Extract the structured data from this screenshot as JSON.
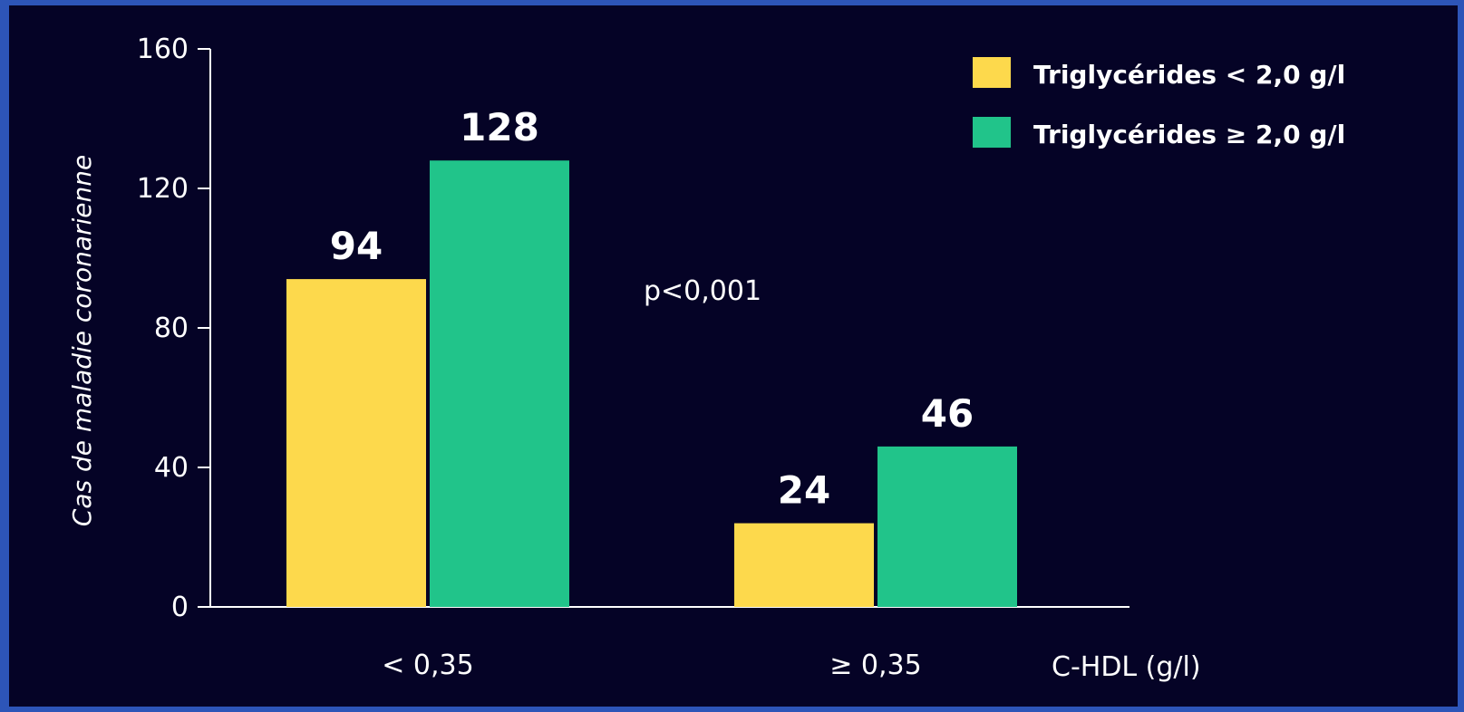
{
  "chart_data": {
    "type": "bar",
    "categories": [
      "< 0,35",
      "≥ 0,35"
    ],
    "series": [
      {
        "name": "Triglycérides < 2,0 g/l",
        "values": [
          94,
          24
        ],
        "color": "#fdd94c"
      },
      {
        "name": "Triglycérides ≥ 2,0 g/l",
        "values": [
          128,
          46
        ],
        "color": "#21c48a"
      }
    ],
    "data_labels": [
      [
        "94",
        "24"
      ],
      [
        "128",
        "46"
      ]
    ],
    "yticks": [
      0,
      40,
      80,
      120,
      160
    ],
    "ylim": [
      0,
      160
    ],
    "ylabel": "Cas de maladie coronarienne",
    "xlabel": "C-HDL (g/l)",
    "annotation": "p<0,001",
    "legend_position": "top-right",
    "grid": false
  },
  "colors": {
    "background": "#050326",
    "border": "#2d55b8",
    "axis": "#ffffff"
  }
}
